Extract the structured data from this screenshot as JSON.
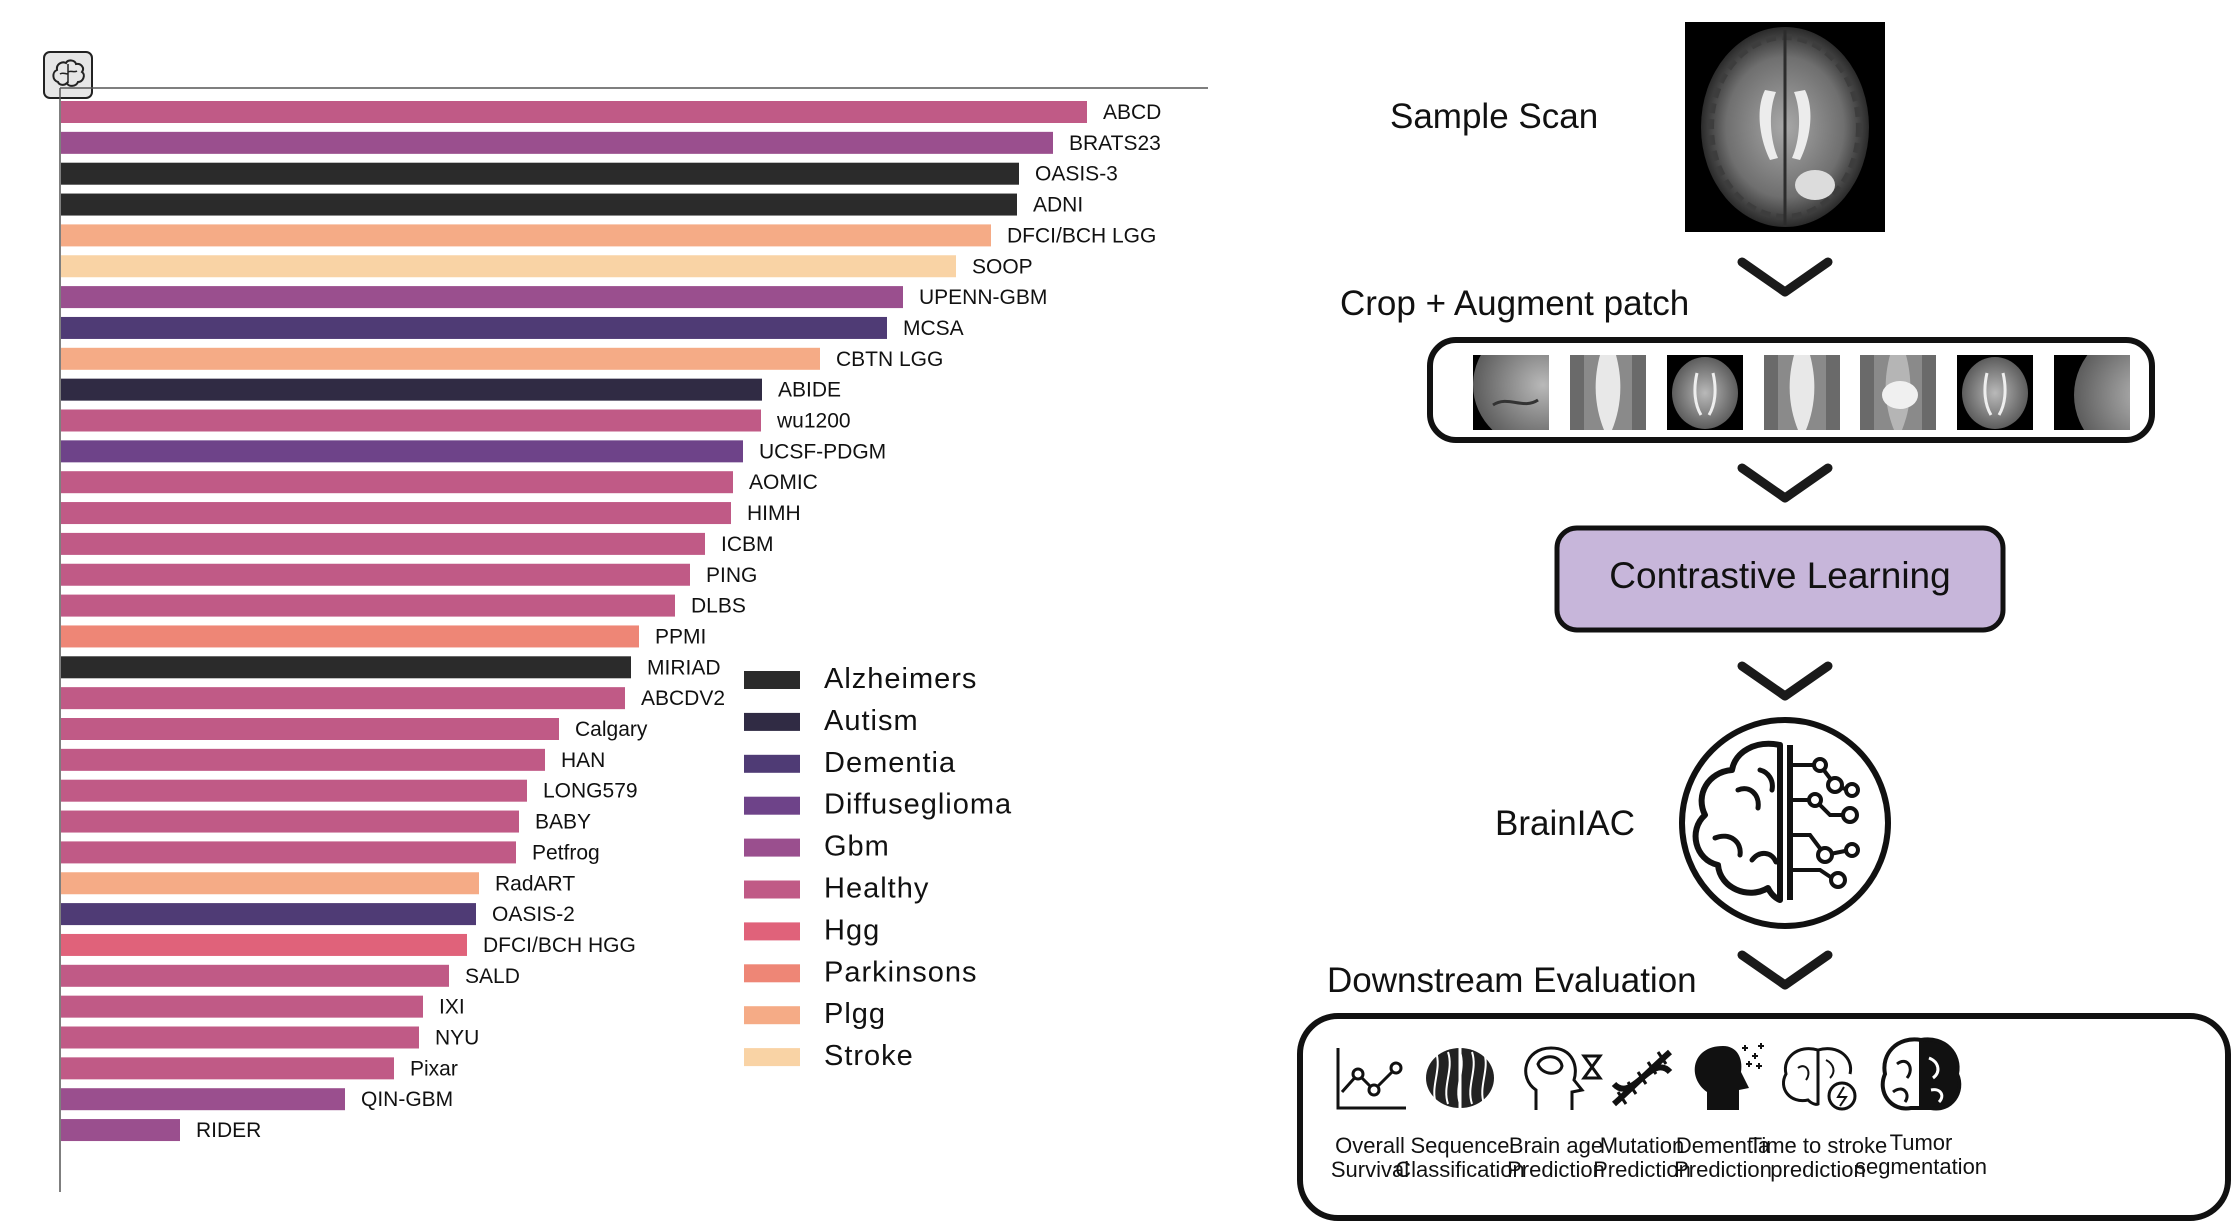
{
  "chart_data": {
    "type": "bar",
    "orientation": "horizontal",
    "title": "",
    "xlabel": "",
    "ylabel": "",
    "legend_position": "right-middle",
    "categories": [
      "ABCD",
      "BRATS23",
      "OASIS-3",
      "ADNI",
      "DFCI/BCH LGG",
      "SOOP",
      "UPENN-GBM",
      "MCSA",
      "CBTN LGG",
      "ABIDE",
      "wu1200",
      "UCSF-PDGM",
      "AOMIC",
      "HIMH",
      "ICBM",
      "PING",
      "DLBS",
      "PPMI",
      "MIRIAD",
      "ABCDV2",
      "Calgary",
      "HAN",
      "LONG579",
      "BABY",
      "Petfrog",
      "RadART",
      "OASIS-2",
      "DFCI/BCH HGG",
      "SALD",
      "IXI",
      "NYU",
      "Pixar",
      "QIN-GBM",
      "RIDER"
    ],
    "values": [
      1026,
      992,
      958,
      956,
      930,
      895,
      842,
      826,
      759,
      701,
      700,
      682,
      672,
      670,
      644,
      629,
      614,
      578,
      570,
      564,
      498,
      484,
      466,
      458,
      455,
      418,
      415,
      406,
      388,
      362,
      358,
      333,
      284,
      119
    ],
    "groups": [
      "Healthy",
      "Gbm",
      "Alzheimers",
      "Alzheimers",
      "Plgg",
      "Stroke",
      "Gbm",
      "Dementia",
      "Plgg",
      "Autism",
      "Healthy",
      "Diffuseglioma",
      "Healthy",
      "Healthy",
      "Healthy",
      "Healthy",
      "Healthy",
      "Parkinsons",
      "Alzheimers",
      "Healthy",
      "Healthy",
      "Healthy",
      "Healthy",
      "Healthy",
      "Healthy",
      "Plgg",
      "Dementia",
      "Hgg",
      "Healthy",
      "Healthy",
      "Healthy",
      "Healthy",
      "Gbm",
      "Gbm"
    ],
    "legend": [
      {
        "name": "Alzheimers",
        "color": "#2b2b2b"
      },
      {
        "name": "Autism",
        "color": "#302b44"
      },
      {
        "name": "Dementia",
        "color": "#4f3b75"
      },
      {
        "name": "Diffuseglioma",
        "color": "#6e4389"
      },
      {
        "name": "Gbm",
        "color": "#9a4f8e"
      },
      {
        "name": "Healthy",
        "color": "#c05a86"
      },
      {
        "name": "Hgg",
        "color": "#e0627a"
      },
      {
        "name": "Parkinsons",
        "color": "#ee8676"
      },
      {
        "name": "Plgg",
        "color": "#f5ab86"
      },
      {
        "name": "Stroke",
        "color": "#f9d3a5"
      }
    ],
    "corner_icon": "brain-icon"
  },
  "pipeline": {
    "sample_scan_label": "Sample Scan",
    "crop_label": "Crop + Augment patch",
    "contrastive_label": "Contrastive Learning",
    "model_label": "BrainIAC",
    "downstream_label": "Downstream Evaluation",
    "tasks": [
      {
        "icon": "survival-chart-icon",
        "line1": "Overall",
        "line2": "Survival"
      },
      {
        "icon": "brain-sequence-icon",
        "line1": "Sequence",
        "line2": "Classification"
      },
      {
        "icon": "head-hourglass-icon",
        "line1": "Brain age",
        "line2": "Prediction"
      },
      {
        "icon": "dna-icon",
        "line1": "Mutation",
        "line2": "Prediction"
      },
      {
        "icon": "head-dementia-icon",
        "line1": "Dementia",
        "line2": "Prediction"
      },
      {
        "icon": "brain-stroke-icon",
        "line1": "Time to stroke",
        "line2": "prediction"
      },
      {
        "icon": "tumor-brain-icon",
        "line1": "Tumor",
        "line2": "segmentation"
      }
    ]
  }
}
